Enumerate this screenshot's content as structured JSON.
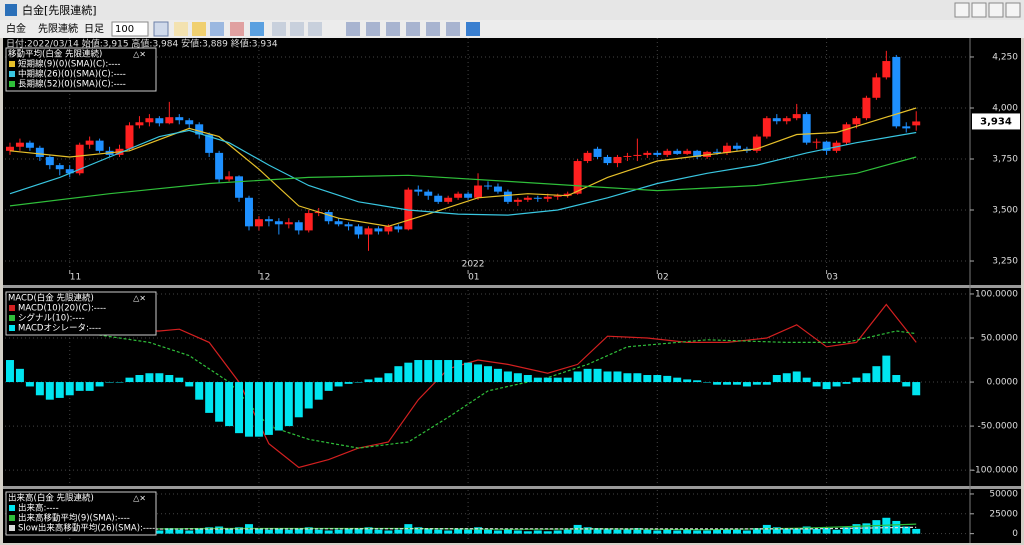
{
  "window": {
    "title": "白金[先限連続]"
  },
  "toolbar": {
    "symbol": "白金",
    "contract": "先限連続",
    "period": "日足",
    "count": "100"
  },
  "chart_data": [
    {
      "type": "candlestick",
      "info": "日付:2022/03/14 始値:3,915 高値:3,984 安値:3,889 終値:3,934",
      "legend_title": "移動平均(白金 先限連続)",
      "up_color": "#ff2020",
      "down_color": "#1e90ff",
      "xlim": [
        -0.5,
        96.2
      ],
      "ylim": [
        3206,
        4343
      ],
      "yticks": [
        {
          "value": 3250,
          "label": "3,250"
        },
        {
          "value": 3500,
          "label": "3,500"
        },
        {
          "value": 3750,
          "label": "3,750"
        },
        {
          "value": 4000,
          "label": "4,000"
        },
        {
          "value": 4250,
          "label": "4,250"
        }
      ],
      "xticks": [
        {
          "value": 6,
          "label": "11"
        },
        {
          "value": 25,
          "label": "12"
        },
        {
          "value": 46,
          "label": "01"
        },
        {
          "value": 65,
          "label": "02"
        },
        {
          "value": 82,
          "label": "03"
        }
      ],
      "year_label": {
        "value": 46,
        "label": "2022"
      },
      "grid": true,
      "last_label": "3,934",
      "ohlc": [
        [
          3790,
          3830,
          3770,
          3810
        ],
        [
          3810,
          3850,
          3790,
          3830
        ],
        [
          3830,
          3840,
          3790,
          3805
        ],
        [
          3805,
          3815,
          3740,
          3760
        ],
        [
          3760,
          3770,
          3700,
          3720
        ],
        [
          3720,
          3730,
          3670,
          3700
        ],
        [
          3700,
          3720,
          3660,
          3680
        ],
        [
          3680,
          3830,
          3670,
          3820
        ],
        [
          3820,
          3860,
          3800,
          3840
        ],
        [
          3840,
          3850,
          3780,
          3790
        ],
        [
          3790,
          3810,
          3760,
          3770
        ],
        [
          3770,
          3820,
          3760,
          3800
        ],
        [
          3800,
          3930,
          3790,
          3915
        ],
        [
          3915,
          3960,
          3900,
          3930
        ],
        [
          3930,
          3970,
          3910,
          3950
        ],
        [
          3950,
          3960,
          3910,
          3925
        ],
        [
          3925,
          4030,
          3920,
          3955
        ],
        [
          3955,
          3970,
          3920,
          3940
        ],
        [
          3940,
          3950,
          3900,
          3920
        ],
        [
          3920,
          3930,
          3850,
          3870
        ],
        [
          3870,
          3880,
          3760,
          3780
        ],
        [
          3780,
          3790,
          3630,
          3650
        ],
        [
          3650,
          3690,
          3640,
          3665
        ],
        [
          3665,
          3670,
          3540,
          3560
        ],
        [
          3560,
          3570,
          3400,
          3420
        ],
        [
          3420,
          3470,
          3400,
          3455
        ],
        [
          3455,
          3470,
          3420,
          3445
        ],
        [
          3445,
          3460,
          3380,
          3430
        ],
        [
          3430,
          3460,
          3410,
          3440
        ],
        [
          3440,
          3450,
          3380,
          3400
        ],
        [
          3400,
          3500,
          3390,
          3485
        ],
        [
          3485,
          3510,
          3470,
          3490
        ],
        [
          3490,
          3500,
          3430,
          3445
        ],
        [
          3445,
          3460,
          3420,
          3430
        ],
        [
          3430,
          3440,
          3400,
          3420
        ],
        [
          3420,
          3430,
          3360,
          3380
        ],
        [
          3380,
          3420,
          3300,
          3410
        ],
        [
          3410,
          3420,
          3380,
          3395
        ],
        [
          3395,
          3430,
          3380,
          3420
        ],
        [
          3420,
          3430,
          3390,
          3405
        ],
        [
          3405,
          3610,
          3400,
          3600
        ],
        [
          3600,
          3620,
          3570,
          3590
        ],
        [
          3590,
          3600,
          3550,
          3570
        ],
        [
          3570,
          3580,
          3530,
          3540
        ],
        [
          3540,
          3570,
          3530,
          3560
        ],
        [
          3560,
          3590,
          3550,
          3580
        ],
        [
          3580,
          3590,
          3550,
          3560
        ],
        [
          3560,
          3680,
          3550,
          3620
        ],
        [
          3620,
          3640,
          3600,
          3615
        ],
        [
          3615,
          3630,
          3580,
          3590
        ],
        [
          3590,
          3600,
          3530,
          3540
        ],
        [
          3540,
          3560,
          3520,
          3550
        ],
        [
          3550,
          3570,
          3540,
          3560
        ],
        [
          3560,
          3570,
          3540,
          3555
        ],
        [
          3555,
          3580,
          3540,
          3565
        ],
        [
          3565,
          3580,
          3550,
          3570
        ],
        [
          3570,
          3590,
          3560,
          3580
        ],
        [
          3580,
          3750,
          3575,
          3740
        ],
        [
          3740,
          3790,
          3730,
          3780
        ],
        [
          3800,
          3810,
          3750,
          3760
        ],
        [
          3760,
          3770,
          3720,
          3730
        ],
        [
          3730,
          3770,
          3710,
          3760
        ],
        [
          3760,
          3780,
          3740,
          3765
        ],
        [
          3765,
          3850,
          3740,
          3770
        ],
        [
          3770,
          3790,
          3755,
          3780
        ],
        [
          3780,
          3790,
          3760,
          3770
        ],
        [
          3770,
          3800,
          3760,
          3790
        ],
        [
          3790,
          3800,
          3770,
          3775
        ],
        [
          3775,
          3800,
          3770,
          3790
        ],
        [
          3790,
          3795,
          3750,
          3760
        ],
        [
          3760,
          3790,
          3750,
          3785
        ],
        [
          3785,
          3800,
          3770,
          3780
        ],
        [
          3780,
          3830,
          3770,
          3815
        ],
        [
          3815,
          3830,
          3790,
          3800
        ],
        [
          3800,
          3810,
          3780,
          3790
        ],
        [
          3790,
          3870,
          3780,
          3860
        ],
        [
          3860,
          3960,
          3850,
          3950
        ],
        [
          3950,
          3970,
          3920,
          3935
        ],
        [
          3935,
          3960,
          3920,
          3950
        ],
        [
          3950,
          4020,
          3940,
          3970
        ],
        [
          3970,
          3980,
          3820,
          3830
        ],
        [
          3830,
          3850,
          3800,
          3835
        ],
        [
          3835,
          3840,
          3770,
          3790
        ],
        [
          3790,
          3840,
          3780,
          3830
        ],
        [
          3830,
          3930,
          3820,
          3920
        ],
        [
          3920,
          3960,
          3900,
          3950
        ],
        [
          3950,
          4060,
          3940,
          4050
        ],
        [
          4050,
          4170,
          4040,
          4150
        ],
        [
          4150,
          4280,
          4140,
          4230
        ],
        [
          4250,
          4260,
          3900,
          3910
        ],
        [
          3910,
          3930,
          3880,
          3900
        ],
        [
          3915,
          3984,
          3889,
          3934
        ]
      ],
      "series": [
        {
          "name": "短期線(9)(0)(SMA)(C):----",
          "color": "#e6c02a",
          "type": "line",
          "x": [
            0,
            6,
            12,
            18,
            21,
            25,
            29,
            33,
            38,
            42,
            47,
            52,
            56,
            60,
            65,
            70,
            75,
            79,
            83,
            87,
            91
          ],
          "values": [
            3790,
            3760,
            3790,
            3900,
            3860,
            3700,
            3520,
            3460,
            3420,
            3480,
            3560,
            3580,
            3570,
            3660,
            3740,
            3770,
            3800,
            3870,
            3880,
            3940,
            4000
          ]
        },
        {
          "name": "中期線(26)(0)(SMA)(C):----",
          "color": "#39c6e0",
          "type": "line",
          "x": [
            0,
            5,
            10,
            15,
            18,
            22,
            26,
            30,
            35,
            40,
            45,
            50,
            55,
            60,
            65,
            70,
            75,
            80,
            85,
            91
          ],
          "values": [
            3580,
            3660,
            3760,
            3860,
            3890,
            3830,
            3720,
            3620,
            3540,
            3500,
            3480,
            3475,
            3500,
            3560,
            3630,
            3680,
            3720,
            3780,
            3830,
            3880
          ]
        },
        {
          "name": "長期線(52)(0)(SMA)(C):----",
          "color": "#2fbf3a",
          "type": "line",
          "x": [
            0,
            10,
            20,
            30,
            40,
            50,
            60,
            65,
            75,
            85,
            91
          ],
          "values": [
            3520,
            3580,
            3630,
            3660,
            3670,
            3640,
            3610,
            3595,
            3620,
            3680,
            3760
          ]
        }
      ]
    },
    {
      "type": "macd",
      "legend_title": "MACD(白金 先限連続)",
      "xlim": [
        -0.5,
        96.2
      ],
      "ylim": [
        -118,
        104.5
      ],
      "yticks": [
        {
          "value": -100,
          "label": "-100.0000"
        },
        {
          "value": -50,
          "label": "-50.0000"
        },
        {
          "value": 0,
          "label": "0.0000"
        },
        {
          "value": 50,
          "label": "50.0000"
        },
        {
          "value": 100,
          "label": "100.0000"
        }
      ],
      "xticks": [
        6,
        25,
        46,
        65,
        82
      ],
      "grid": true,
      "series": [
        {
          "name": "MACD(10)(20)(C):----",
          "color": "#d42020",
          "type": "line",
          "x": [
            0,
            6,
            10,
            15,
            17,
            20,
            23,
            26,
            29,
            32,
            35,
            38,
            41,
            44,
            47,
            50,
            54,
            57,
            60,
            64,
            68,
            72,
            76,
            79,
            82,
            85,
            88,
            91
          ],
          "values": [
            75,
            62,
            58,
            58,
            60,
            45,
            0,
            -70,
            -97,
            -88,
            -75,
            -68,
            -20,
            15,
            25,
            20,
            10,
            20,
            52,
            50,
            45,
            45,
            50,
            65,
            40,
            45,
            88,
            45
          ]
        },
        {
          "name": "シグナル(10):----",
          "color": "#2fbf3a",
          "type": "line",
          "dash": true,
          "x": [
            0,
            8,
            14,
            18,
            22,
            26,
            30,
            35,
            40,
            44,
            48,
            54,
            58,
            62,
            70,
            78,
            84,
            89,
            91
          ],
          "values": [
            70,
            55,
            45,
            30,
            0,
            -50,
            -65,
            -75,
            -68,
            -40,
            -10,
            5,
            20,
            40,
            48,
            45,
            45,
            58,
            55
          ]
        },
        {
          "name": "MACDオシレータ:----",
          "color": "#00e5f0",
          "type": "bar",
          "values": [
            25,
            15,
            -5,
            -15,
            -20,
            -18,
            -15,
            -10,
            -10,
            -5,
            0,
            0,
            5,
            8,
            10,
            10,
            8,
            5,
            -5,
            -20,
            -35,
            -45,
            -50,
            -58,
            -62,
            -62,
            -60,
            -55,
            -50,
            -40,
            -30,
            -20,
            -10,
            -5,
            -2,
            0,
            3,
            5,
            10,
            18,
            22,
            25,
            25,
            25,
            25,
            25,
            22,
            20,
            18,
            15,
            12,
            10,
            8,
            5,
            5,
            5,
            5,
            12,
            15,
            15,
            12,
            12,
            10,
            10,
            8,
            8,
            7,
            5,
            3,
            2,
            0,
            -3,
            -3,
            -3,
            -5,
            -3,
            -3,
            8,
            10,
            12,
            5,
            -5,
            -8,
            -5,
            -2,
            5,
            10,
            18,
            30,
            8,
            -5,
            -15
          ]
        }
      ]
    },
    {
      "type": "volume",
      "legend_title": "出来高(白金 先限連続)",
      "xlim": [
        -0.5,
        96.2
      ],
      "ylim": [
        -8000,
        55000
      ],
      "yticks": [
        0,
        25000,
        50000
      ],
      "xticks": [
        6,
        25,
        46,
        65,
        82
      ],
      "grid": true,
      "series": [
        {
          "name": "出来高:----",
          "color": "#00e5f0",
          "type": "bar",
          "values": [
            5000,
            4000,
            6000,
            5000,
            7000,
            6000,
            5000,
            8000,
            6000,
            5000,
            4000,
            5000,
            9000,
            6000,
            5000,
            4000,
            7000,
            5000,
            4000,
            6000,
            8000,
            9000,
            6000,
            8000,
            12000,
            7000,
            5000,
            6000,
            5000,
            7000,
            8000,
            5000,
            4000,
            5000,
            6000,
            7000,
            8000,
            5000,
            4000,
            5000,
            12000,
            8000,
            6000,
            5000,
            4000,
            6000,
            5000,
            8000,
            5000,
            4000,
            6000,
            4000,
            3000,
            4000,
            3000,
            4000,
            5000,
            11000,
            8000,
            7000,
            6000,
            5000,
            6000,
            7000,
            5000,
            4000,
            5000,
            4000,
            5000,
            4000,
            4000,
            5000,
            6000,
            5000,
            4000,
            7000,
            11000,
            8000,
            6000,
            7000,
            9000,
            6000,
            7000,
            5000,
            8000,
            12000,
            13000,
            17000,
            20000,
            16000,
            9000,
            6000
          ]
        },
        {
          "name": "出来高移動平均(9)(SMA):----",
          "color": "#2fbf3a",
          "type": "line",
          "x": [
            0,
            10,
            20,
            30,
            40,
            50,
            60,
            70,
            80,
            91
          ],
          "values": [
            5500,
            5500,
            6500,
            6500,
            6500,
            5500,
            6000,
            5000,
            7000,
            12000
          ]
        },
        {
          "name": "Slow出来高移動平均(26)(SMA):----",
          "color": "#dddddd",
          "type": "line",
          "dash": true,
          "x": [
            0,
            20,
            40,
            60,
            80,
            91
          ],
          "values": [
            5500,
            5800,
            6300,
            6000,
            6000,
            8000
          ]
        }
      ]
    }
  ]
}
